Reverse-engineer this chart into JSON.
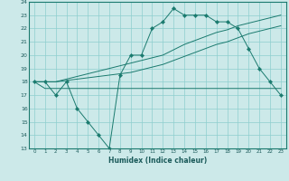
{
  "xlabel": "Humidex (Indice chaleur)",
  "background_color": "#cce9e9",
  "line_color": "#1a7a6e",
  "x_values": [
    0,
    1,
    2,
    3,
    4,
    5,
    6,
    7,
    8,
    9,
    10,
    11,
    12,
    13,
    14,
    15,
    16,
    17,
    18,
    19,
    20,
    21,
    22,
    23
  ],
  "line1_y": [
    18,
    18,
    17,
    18,
    16,
    15,
    14,
    13,
    18.5,
    20,
    20,
    22,
    22.5,
    23.5,
    23,
    23,
    23,
    22.5,
    22.5,
    22,
    20.5,
    19,
    18,
    17
  ],
  "line2_y": [
    18,
    18,
    18,
    18.2,
    18.4,
    18.6,
    18.8,
    19.0,
    19.2,
    19.4,
    19.6,
    19.8,
    20.0,
    20.4,
    20.8,
    21.1,
    21.4,
    21.7,
    21.9,
    22.2,
    22.4,
    22.6,
    22.8,
    23.0
  ],
  "line3_y": [
    18,
    18,
    18,
    18.1,
    18.2,
    18.3,
    18.4,
    18.5,
    18.6,
    18.7,
    18.9,
    19.1,
    19.3,
    19.6,
    19.9,
    20.2,
    20.5,
    20.8,
    21.0,
    21.3,
    21.6,
    21.8,
    22.0,
    22.2
  ],
  "line4_y": [
    18,
    17.5,
    17.5,
    17.5,
    17.5,
    17.5,
    17.5,
    17.5,
    17.5,
    17.5,
    17.5,
    17.5,
    17.5,
    17.5,
    17.5,
    17.5,
    17.5,
    17.5,
    17.5,
    17.5,
    17.5,
    17.5,
    17.5,
    17.5
  ],
  "ylim": [
    13,
    24
  ],
  "xlim": [
    -0.5,
    23.5
  ],
  "yticks": [
    13,
    14,
    15,
    16,
    17,
    18,
    19,
    20,
    21,
    22,
    23,
    24
  ],
  "xticks": [
    0,
    1,
    2,
    3,
    4,
    5,
    6,
    7,
    8,
    9,
    10,
    11,
    12,
    13,
    14,
    15,
    16,
    17,
    18,
    19,
    20,
    21,
    22,
    23
  ]
}
